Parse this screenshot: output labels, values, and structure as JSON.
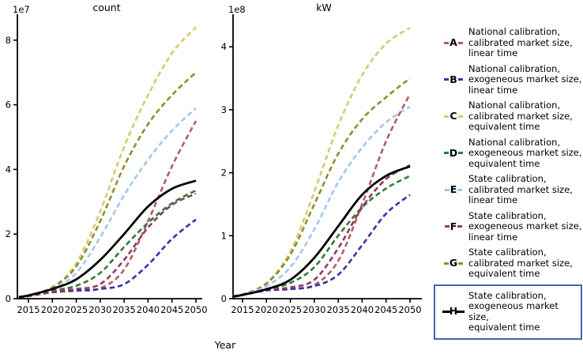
{
  "figure": {
    "xlabel": "Year",
    "background_color": "#ffffff",
    "highlight_box_color": "#4166ac"
  },
  "legend": {
    "entries": [
      {
        "key": "A",
        "color": "#b35b66",
        "line_style": "dashed",
        "highlighted": false,
        "lines": [
          "National calibration,",
          "calibrated market size,",
          "linear time"
        ]
      },
      {
        "key": "B",
        "color": "#3535a4",
        "line_style": "dashed",
        "highlighted": false,
        "lines": [
          "National calibration,",
          "exogeneous market size,",
          "linear time"
        ]
      },
      {
        "key": "C",
        "color": "#d6ca71",
        "line_style": "dashed",
        "highlighted": false,
        "lines": [
          "National calibration,",
          "calibrated market size,",
          "equivalent time"
        ]
      },
      {
        "key": "D",
        "color": "#2f7d33",
        "line_style": "dashed",
        "highlighted": false,
        "lines": [
          "National calibration,",
          "exogeneous market size,",
          "equivalent time"
        ]
      },
      {
        "key": "E",
        "color": "#a0c8ee",
        "line_style": "dashed",
        "highlighted": false,
        "lines": [
          "State calibration,",
          "calibrated market size,",
          "linear time"
        ]
      },
      {
        "key": "F",
        "color": "#8e3a66",
        "line_style": "dashed",
        "highlighted": false,
        "lines": [
          "State calibration,",
          "exogeneous market size,",
          "linear time"
        ]
      },
      {
        "key": "G",
        "color": "#8e8e2f",
        "line_style": "dashed",
        "highlighted": false,
        "lines": [
          "State calibration,",
          "calibrated market size,",
          "equivalent time"
        ]
      },
      {
        "key": "H",
        "color": "#000000",
        "line_style": "solid",
        "highlighted": true,
        "lines": [
          "State calibration,",
          "exogeneous market size,",
          "equivalent time"
        ]
      }
    ]
  },
  "chart_data": [
    {
      "type": "line",
      "title": "count",
      "scale_label": "1e7",
      "xlabel": "Year",
      "value_multiplier": "1e7",
      "x": [
        2013,
        2015,
        2020,
        2025,
        2030,
        2035,
        2040,
        2045,
        2050
      ],
      "xticks": [
        2015,
        2020,
        2025,
        2030,
        2035,
        2040,
        2045,
        2050
      ],
      "yticks": [
        0,
        2,
        4,
        6,
        8
      ],
      "xlim": [
        2012.6,
        2051.3
      ],
      "ylim": [
        0,
        8.8
      ],
      "grid": false,
      "series": [
        {
          "key": "C",
          "label": "C: National calibration, calibrated market size, equivalent time",
          "color": "#d6ca71",
          "line_style": "dashed",
          "values": [
            0.05,
            0.1,
            0.35,
            1.1,
            2.7,
            4.7,
            6.3,
            7.6,
            8.4
          ]
        },
        {
          "key": "G",
          "label": "G: State calibration, calibrated market size, equivalent time",
          "color": "#8e8e2f",
          "line_style": "dashed",
          "values": [
            0.05,
            0.1,
            0.35,
            1.0,
            2.4,
            4.1,
            5.4,
            6.3,
            7.0
          ]
        },
        {
          "key": "E",
          "label": "E: State calibration, calibrated market size, linear time",
          "color": "#a0c8ee",
          "line_style": "dashed",
          "values": [
            0.05,
            0.1,
            0.3,
            0.8,
            1.9,
            3.2,
            4.3,
            5.2,
            5.9
          ]
        },
        {
          "key": "A",
          "label": "A: National calibration, calibrated market size, linear time",
          "color": "#b35b66",
          "line_style": "dashed",
          "values": [
            0.05,
            0.08,
            0.2,
            0.25,
            0.32,
            0.9,
            2.4,
            4.1,
            5.5
          ]
        },
        {
          "key": "B",
          "label": "B: National calibration, exogeneous market size, linear time",
          "color": "#3535a4",
          "line_style": "dashed",
          "values": [
            0.05,
            0.08,
            0.2,
            0.25,
            0.3,
            0.45,
            1.05,
            1.85,
            2.45
          ]
        },
        {
          "key": "D",
          "label": "D: National calibration, exogeneous market size, equivalent time",
          "color": "#2f7d33",
          "line_style": "dashed",
          "values": [
            0.05,
            0.08,
            0.25,
            0.4,
            0.8,
            1.6,
            2.35,
            2.95,
            3.35
          ]
        },
        {
          "key": "F",
          "label": "F: State calibration, exogeneous market size, linear time",
          "color": "#8e3a66",
          "line_style": "dashed",
          "values": [
            0.05,
            0.08,
            0.22,
            0.3,
            0.45,
            1.2,
            2.2,
            2.9,
            3.25
          ]
        },
        {
          "key": "H",
          "label": "H: State calibration, exogeneous market size, equivalent time",
          "color": "#000000",
          "line_style": "solid",
          "values": [
            0.05,
            0.1,
            0.3,
            0.6,
            1.2,
            2.0,
            2.85,
            3.4,
            3.65
          ]
        }
      ]
    },
    {
      "type": "line",
      "title": "kW",
      "scale_label": "1e8",
      "xlabel": "Year",
      "value_multiplier": "1e8",
      "x": [
        2013,
        2015,
        2020,
        2025,
        2030,
        2035,
        2040,
        2045,
        2050
      ],
      "xticks": [
        2015,
        2020,
        2025,
        2030,
        2035,
        2040,
        2045,
        2050
      ],
      "yticks": [
        0,
        1,
        2,
        3,
        4
      ],
      "xlim": [
        2012.6,
        2051.3
      ],
      "ylim": [
        0,
        4.5
      ],
      "grid": false,
      "series": [
        {
          "key": "C",
          "label": "C: National calibration, calibrated market size, equivalent time",
          "color": "#d6ca71",
          "line_style": "dashed",
          "values": [
            0.04,
            0.07,
            0.25,
            0.75,
            1.7,
            2.75,
            3.55,
            4.05,
            4.3
          ]
        },
        {
          "key": "G",
          "label": "G: State calibration, calibrated market size, equivalent time",
          "color": "#8e8e2f",
          "line_style": "dashed",
          "values": [
            0.04,
            0.07,
            0.24,
            0.7,
            1.5,
            2.3,
            2.85,
            3.2,
            3.5
          ]
        },
        {
          "key": "E",
          "label": "E: State calibration, calibrated market size, linear time",
          "color": "#a0c8ee",
          "line_style": "dashed",
          "values": [
            0.04,
            0.07,
            0.2,
            0.5,
            1.1,
            1.85,
            2.4,
            2.8,
            3.05
          ]
        },
        {
          "key": "A",
          "label": "A: National calibration, calibrated market size, linear time",
          "color": "#b35b66",
          "line_style": "dashed",
          "values": [
            0.04,
            0.06,
            0.13,
            0.16,
            0.22,
            0.6,
            1.5,
            2.5,
            3.25
          ]
        },
        {
          "key": "B",
          "label": "B: National calibration, exogeneous market size, linear time",
          "color": "#3535a4",
          "line_style": "dashed",
          "values": [
            0.04,
            0.06,
            0.13,
            0.15,
            0.2,
            0.38,
            0.85,
            1.35,
            1.65
          ]
        },
        {
          "key": "D",
          "label": "D: National calibration, exogeneous market size, equivalent time",
          "color": "#2f7d33",
          "line_style": "dashed",
          "values": [
            0.04,
            0.06,
            0.15,
            0.25,
            0.5,
            1.0,
            1.45,
            1.75,
            1.95
          ]
        },
        {
          "key": "F",
          "label": "F: State calibration, exogeneous market size, linear time",
          "color": "#8e3a66",
          "line_style": "dashed",
          "values": [
            0.04,
            0.06,
            0.14,
            0.18,
            0.3,
            0.8,
            1.45,
            1.9,
            2.12
          ]
        },
        {
          "key": "H",
          "label": "H: State calibration, exogeneous market size, equivalent time",
          "color": "#000000",
          "line_style": "solid",
          "values": [
            0.03,
            0.06,
            0.15,
            0.3,
            0.65,
            1.15,
            1.65,
            1.95,
            2.1
          ]
        }
      ]
    }
  ]
}
